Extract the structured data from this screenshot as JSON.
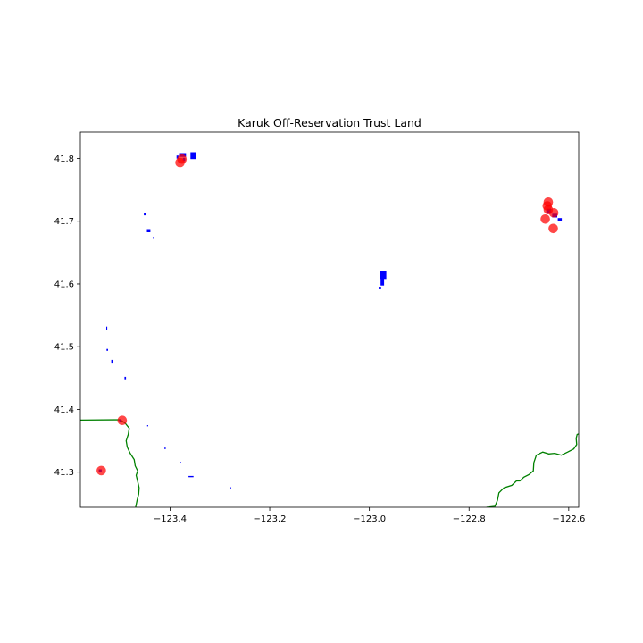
{
  "title": "Karuk Off-Reservation Trust Land",
  "map": {
    "xlim": [
      -123.58,
      -122.58
    ],
    "ylim": [
      41.244,
      41.842
    ],
    "x_ticks": [
      {
        "value": -123.4,
        "label": "−123.4"
      },
      {
        "value": -123.2,
        "label": "−123.2"
      },
      {
        "value": -123.0,
        "label": "−123.0"
      },
      {
        "value": -122.8,
        "label": "−122.8"
      },
      {
        "value": -122.6,
        "label": "−122.6"
      }
    ],
    "y_ticks": [
      {
        "value": 41.3,
        "label": "41.3"
      },
      {
        "value": 41.4,
        "label": "41.4"
      },
      {
        "value": 41.5,
        "label": "41.5"
      },
      {
        "value": 41.6,
        "label": "41.6"
      },
      {
        "value": 41.7,
        "label": "41.7"
      },
      {
        "value": 41.8,
        "label": "41.8"
      }
    ],
    "colors": {
      "trust_land": "#0000ff",
      "points": "#ff0000",
      "boundary": "#008000"
    },
    "trust_land_parcels": [
      {
        "lon": -123.385,
        "lat": 41.8022,
        "w": 0.004,
        "h": 0.005
      },
      {
        "lon": -123.375,
        "lat": 41.8055,
        "w": 0.014,
        "h": 0.006
      },
      {
        "lon": -123.353,
        "lat": 41.8045,
        "w": 0.012,
        "h": 0.011
      },
      {
        "lon": -123.372,
        "lat": 41.7985,
        "w": 0.005,
        "h": 0.005
      },
      {
        "lon": -123.45,
        "lat": 41.7115,
        "w": 0.005,
        "h": 0.004
      },
      {
        "lon": -123.443,
        "lat": 41.685,
        "w": 0.007,
        "h": 0.005
      },
      {
        "lon": -123.433,
        "lat": 41.6735,
        "w": 0.003,
        "h": 0.003
      },
      {
        "lon": -122.972,
        "lat": 41.6145,
        "w": 0.012,
        "h": 0.013
      },
      {
        "lon": -122.974,
        "lat": 41.6035,
        "w": 0.007,
        "h": 0.012
      },
      {
        "lon": -122.979,
        "lat": 41.5935,
        "w": 0.005,
        "h": 0.004
      },
      {
        "lon": -122.64,
        "lat": 41.716,
        "w": 0.01,
        "h": 0.008
      },
      {
        "lon": -122.628,
        "lat": 41.709,
        "w": 0.01,
        "h": 0.006
      },
      {
        "lon": -122.618,
        "lat": 41.7025,
        "w": 0.008,
        "h": 0.005
      },
      {
        "lon": -123.527,
        "lat": 41.529,
        "w": 0.002,
        "h": 0.006
      },
      {
        "lon": -123.526,
        "lat": 41.495,
        "w": 0.003,
        "h": 0.003
      },
      {
        "lon": -123.516,
        "lat": 41.476,
        "w": 0.004,
        "h": 0.006
      },
      {
        "lon": -123.49,
        "lat": 41.45,
        "w": 0.003,
        "h": 0.004
      },
      {
        "lon": -123.445,
        "lat": 41.374,
        "w": 0.002,
        "h": 0.002
      },
      {
        "lon": -123.41,
        "lat": 41.338,
        "w": 0.003,
        "h": 0.002
      },
      {
        "lon": -123.379,
        "lat": 41.315,
        "w": 0.003,
        "h": 0.002
      },
      {
        "lon": -123.358,
        "lat": 41.293,
        "w": 0.01,
        "h": 0.002
      },
      {
        "lon": -123.279,
        "lat": 41.275,
        "w": 0.003,
        "h": 0.002
      },
      {
        "lon": -123.54,
        "lat": 41.302,
        "w": 0.006,
        "h": 0.005
      },
      {
        "lon": -123.5,
        "lat": 41.382,
        "w": 0.004,
        "h": 0.004
      }
    ],
    "points": [
      {
        "lon": -123.38,
        "lat": 41.7935
      },
      {
        "lon": -123.376,
        "lat": 41.799
      },
      {
        "lon": -122.641,
        "lat": 41.7305
      },
      {
        "lon": -122.643,
        "lat": 41.7245
      },
      {
        "lon": -122.641,
        "lat": 41.7185
      },
      {
        "lon": -122.63,
        "lat": 41.7135
      },
      {
        "lon": -122.647,
        "lat": 41.7035
      },
      {
        "lon": -122.631,
        "lat": 41.6885
      },
      {
        "lon": -123.496,
        "lat": 41.3825
      },
      {
        "lon": -123.538,
        "lat": 41.3025
      }
    ],
    "boundaries": [
      [
        [
          -123.58,
          41.383
        ],
        [
          -123.5,
          41.3835
        ],
        [
          -123.49,
          41.378
        ],
        [
          -123.482,
          41.37
        ],
        [
          -123.484,
          41.36
        ],
        [
          -123.488,
          41.35
        ],
        [
          -123.486,
          41.34
        ],
        [
          -123.48,
          41.33
        ],
        [
          -123.472,
          41.32
        ],
        [
          -123.47,
          41.31
        ],
        [
          -123.465,
          41.302
        ],
        [
          -123.468,
          41.295
        ],
        [
          -123.465,
          41.285
        ],
        [
          -123.462,
          41.275
        ],
        [
          -123.463,
          41.265
        ],
        [
          -123.466,
          41.256
        ],
        [
          -123.469,
          41.244
        ]
      ],
      [
        [
          -122.765,
          41.244
        ],
        [
          -122.748,
          41.2455
        ],
        [
          -122.743,
          41.255
        ],
        [
          -122.74,
          41.267
        ],
        [
          -122.73,
          41.275
        ],
        [
          -122.714,
          41.279
        ],
        [
          -122.705,
          41.286
        ],
        [
          -122.698,
          41.286
        ],
        [
          -122.69,
          41.292
        ],
        [
          -122.68,
          41.296
        ],
        [
          -122.671,
          41.302
        ],
        [
          -122.67,
          41.315
        ],
        [
          -122.665,
          41.327
        ],
        [
          -122.652,
          41.332
        ],
        [
          -122.64,
          41.329
        ],
        [
          -122.628,
          41.33
        ],
        [
          -122.615,
          41.327
        ],
        [
          -122.602,
          41.332
        ],
        [
          -122.59,
          41.337
        ],
        [
          -122.584,
          41.344
        ],
        [
          -122.585,
          41.354
        ],
        [
          -122.583,
          41.36
        ],
        [
          -122.58,
          41.361
        ]
      ]
    ]
  }
}
